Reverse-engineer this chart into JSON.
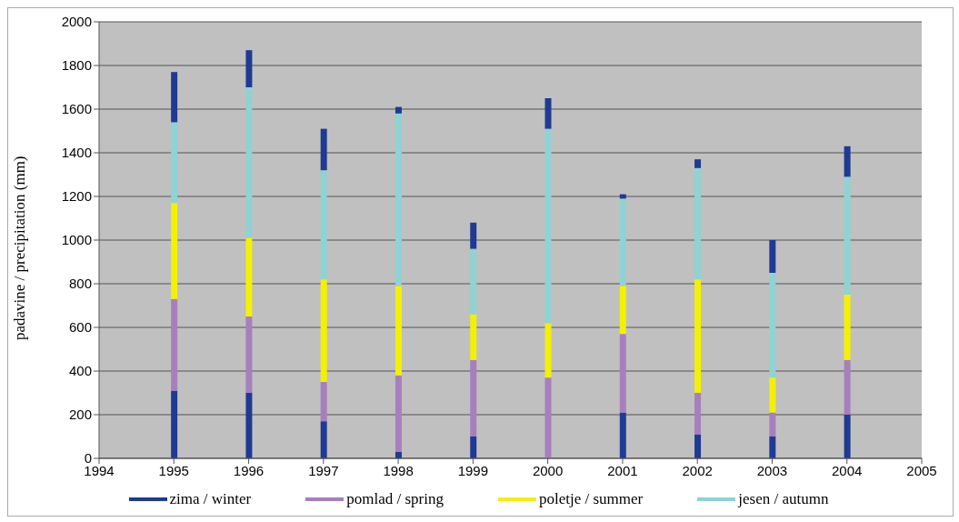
{
  "chart_data": {
    "type": "bar",
    "stacked": true,
    "ylabel": "padavine / precipitation (mm)",
    "x": [
      1995,
      1996,
      1997,
      1998,
      1999,
      2000,
      2001,
      2002,
      2003,
      2004
    ],
    "xlim": [
      1994,
      2005
    ],
    "xticks": [
      1994,
      1995,
      1996,
      1997,
      1998,
      1999,
      2000,
      2001,
      2002,
      2003,
      2004,
      2005
    ],
    "ylim": [
      0,
      2000
    ],
    "yticks": [
      0,
      200,
      400,
      600,
      800,
      1000,
      1200,
      1400,
      1600,
      1800,
      2000
    ],
    "grid": "y",
    "legend": "bottom",
    "series": [
      {
        "name": "zima / winter",
        "color": "#1f3a93",
        "values": [
          310,
          300,
          170,
          30,
          100,
          0,
          210,
          110,
          100,
          200
        ]
      },
      {
        "name": "pomlad / spring",
        "color": "#a77fbf",
        "values": [
          420,
          350,
          180,
          350,
          350,
          370,
          360,
          190,
          110,
          250
        ]
      },
      {
        "name": "poletje / summer",
        "color": "#f5f000",
        "values": [
          440,
          360,
          470,
          410,
          210,
          250,
          220,
          520,
          160,
          300
        ]
      },
      {
        "name": "jesen / autumn",
        "color": "#8fd3d3",
        "values": [
          370,
          690,
          500,
          790,
          300,
          890,
          400,
          510,
          480,
          540
        ]
      },
      {
        "color": "#1f3a93",
        "values": [
          230,
          170,
          190,
          30,
          120,
          140,
          20,
          40,
          150,
          140
        ]
      }
    ]
  }
}
